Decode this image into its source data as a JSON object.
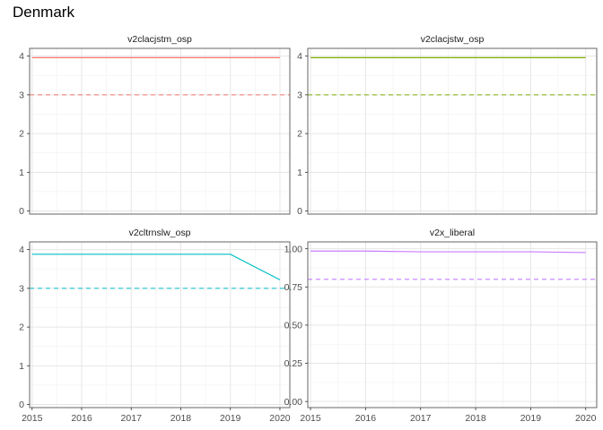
{
  "title": "Denmark",
  "chart_data": {
    "type": "line",
    "title": "Denmark",
    "x": [
      2015,
      2016,
      2017,
      2018,
      2019,
      2020
    ],
    "xlim": [
      2014.95,
      2020.2
    ],
    "grid": true,
    "legend": "none",
    "facets": [
      {
        "name": "v2clacjstm_osp",
        "color": "#F8766D",
        "values": [
          3.96,
          3.96,
          3.96,
          3.96,
          3.96,
          3.96
        ],
        "reference": 3.0,
        "ylim": [
          -0.08,
          4.2
        ],
        "yticks": [
          0,
          1,
          2,
          3,
          4
        ],
        "ytick_labels": [
          "0",
          "1",
          "2",
          "3",
          "4"
        ]
      },
      {
        "name": "v2clacjstw_osp",
        "color": "#7CAE00",
        "values": [
          3.96,
          3.96,
          3.96,
          3.96,
          3.96,
          3.96
        ],
        "reference": 3.0,
        "ylim": [
          -0.08,
          4.2
        ],
        "yticks": [
          0,
          1,
          2,
          3,
          4
        ],
        "ytick_labels": [
          "0",
          "1",
          "2",
          "3",
          "4"
        ]
      },
      {
        "name": "v2cltrnslw_osp",
        "color": "#00BFC4",
        "values": [
          3.88,
          3.88,
          3.88,
          3.88,
          3.88,
          3.22
        ],
        "reference": 3.0,
        "ylim": [
          -0.08,
          4.2
        ],
        "yticks": [
          0,
          1,
          2,
          3,
          4
        ],
        "ytick_labels": [
          "0",
          "1",
          "2",
          "3",
          "4"
        ]
      },
      {
        "name": "v2x_liberal",
        "color": "#C77CFF",
        "values": [
          0.985,
          0.985,
          0.98,
          0.98,
          0.98,
          0.975
        ],
        "reference": 0.8,
        "ylim": [
          -0.04,
          1.045
        ],
        "yticks": [
          0,
          0.25,
          0.5,
          0.75,
          1.0
        ],
        "ytick_labels": [
          "0.00",
          "0.25",
          "0.50",
          "0.75",
          "1.00"
        ]
      }
    ]
  }
}
